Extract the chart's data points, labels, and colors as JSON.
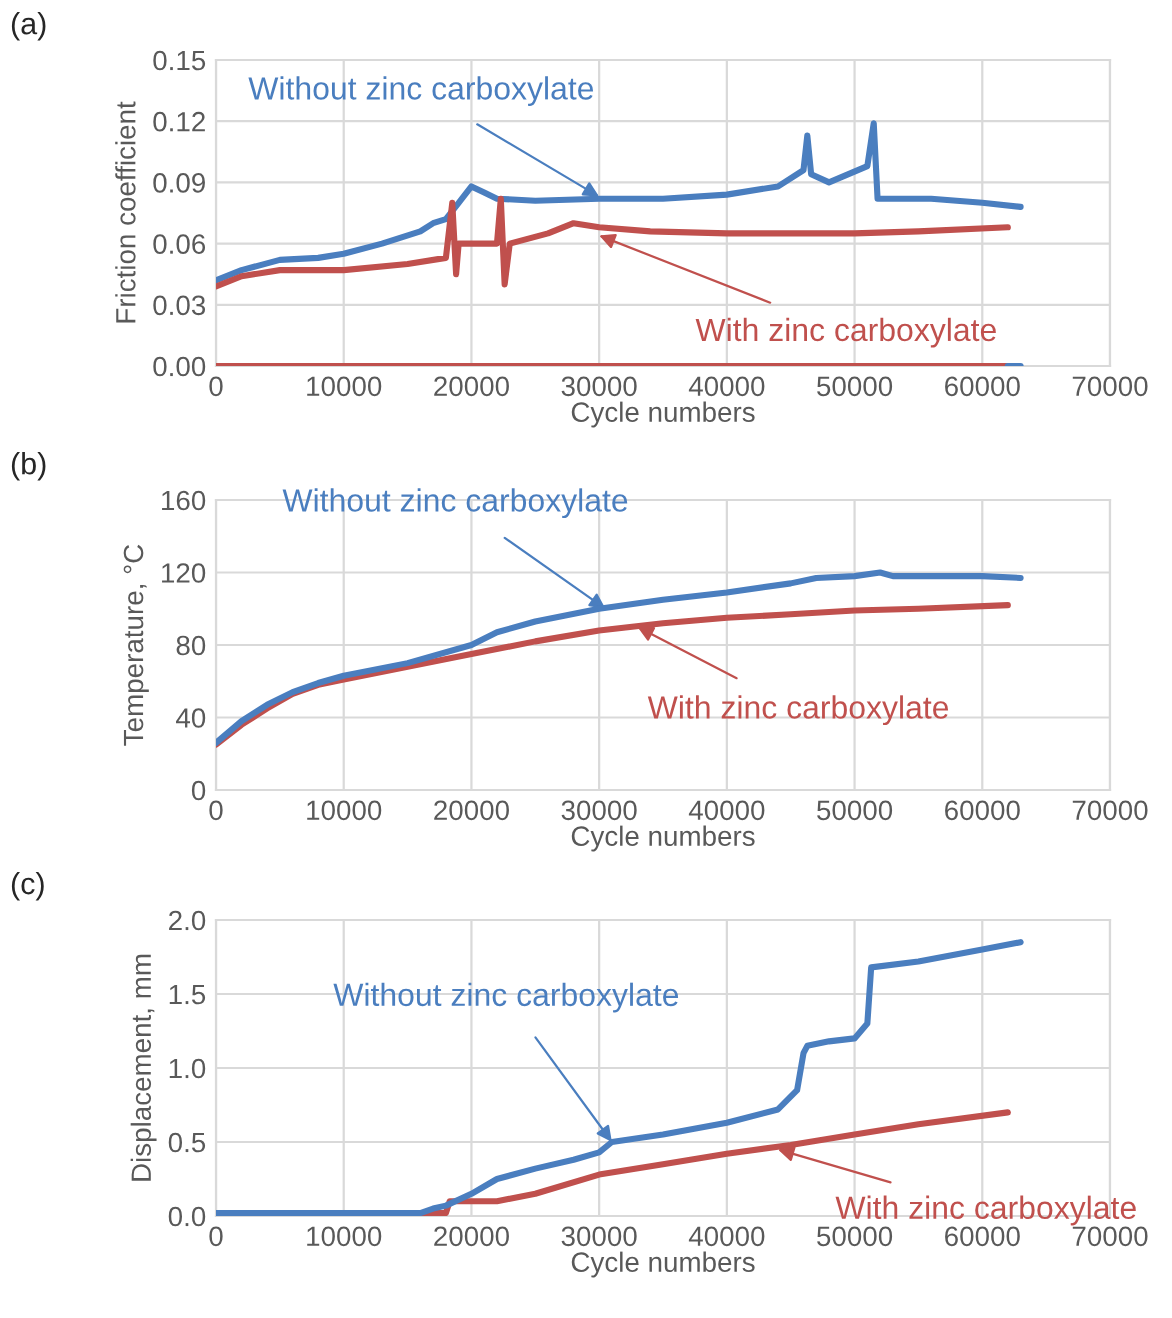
{
  "chart_data": [
    {
      "type": "line",
      "xlabel": "Cycle numbers",
      "ylabel": "Friction coefficient",
      "xlim": [
        0,
        70000
      ],
      "xticks": [
        0,
        10000,
        20000,
        30000,
        40000,
        50000,
        60000,
        70000
      ],
      "ylim": [
        0,
        0.15
      ],
      "yticks": [
        {
          "value": 0,
          "label": "0.00"
        },
        {
          "value": 0.03,
          "label": "0.03"
        },
        {
          "value": 0.06,
          "label": "0.06"
        },
        {
          "value": 0.09,
          "label": "0.09"
        },
        {
          "value": 0.12,
          "label": "0.12"
        },
        {
          "value": 0.15,
          "label": "0.15"
        }
      ],
      "grid": true,
      "legend": false,
      "marker": "none",
      "line_style": "solid",
      "annotations": [
        "(a)",
        {
          "text": "Without zinc carboxylate",
          "x": 30000,
          "y": 0.083
        },
        {
          "text": "With zinc carboxylate",
          "x": 30000,
          "y": 0.064
        }
      ],
      "series": [
        {
          "color": "#c0504d",
          "x": [
            0,
            62000
          ],
          "values": [
            0,
            0
          ]
        },
        {
          "color": "#4a7ebf",
          "x": [
            62000,
            63000
          ],
          "values": [
            0,
            0
          ]
        },
        {
          "color": "#4a7ebf",
          "x": [
            0,
            2000,
            5000,
            8000,
            10000,
            13000,
            16000,
            17000,
            18000,
            19000,
            20000,
            21000,
            22000,
            25000,
            30000,
            35000,
            40000,
            44000,
            46000,
            46300,
            46600,
            48000,
            51000,
            51500,
            51800,
            53000,
            56000,
            60000,
            63000
          ],
          "values": [
            0.042,
            0.047,
            0.052,
            0.053,
            0.055,
            0.06,
            0.066,
            0.07,
            0.072,
            0.08,
            0.088,
            0.085,
            0.082,
            0.081,
            0.082,
            0.082,
            0.084,
            0.088,
            0.096,
            0.113,
            0.094,
            0.09,
            0.098,
            0.119,
            0.082,
            0.082,
            0.082,
            0.08,
            0.078
          ]
        },
        {
          "color": "#c0504d",
          "x": [
            0,
            2000,
            5000,
            10000,
            15000,
            18000,
            18500,
            18800,
            19000,
            22000,
            22300,
            22600,
            23000,
            26000,
            28000,
            30000,
            34000,
            40000,
            50000,
            55000,
            62000
          ],
          "values": [
            0.039,
            0.044,
            0.047,
            0.047,
            0.05,
            0.053,
            0.08,
            0.045,
            0.06,
            0.06,
            0.082,
            0.04,
            0.06,
            0.065,
            0.07,
            0.068,
            0.066,
            0.065,
            0.065,
            0.066,
            0.068
          ]
        }
      ]
    },
    {
      "type": "line",
      "xlabel": "Cycle numbers",
      "ylabel": "Temperature, °C",
      "xlim": [
        0,
        70000
      ],
      "xticks": [
        0,
        10000,
        20000,
        30000,
        40000,
        50000,
        60000,
        70000
      ],
      "ylim": [
        0,
        160
      ],
      "yticks": [
        0,
        40,
        80,
        120,
        160
      ],
      "grid": true,
      "legend": false,
      "marker": "none",
      "line_style": "solid",
      "annotations": [
        "(b)",
        {
          "text": "Without zinc carboxylate",
          "x": 30500,
          "y": 100
        },
        {
          "text": "With zinc carboxylate",
          "x": 33000,
          "y": 90
        }
      ],
      "series": [
        {
          "color": "#c0504d",
          "x": [
            0,
            2000,
            4000,
            6000,
            8000,
            10000,
            15000,
            20000,
            25000,
            30000,
            35000,
            40000,
            45000,
            50000,
            55000,
            62000
          ],
          "values": [
            25,
            36,
            45,
            53,
            58,
            61,
            68,
            75,
            82,
            88,
            92,
            95,
            97,
            99,
            100,
            102
          ]
        },
        {
          "color": "#4a7ebf",
          "x": [
            0,
            2000,
            4000,
            6000,
            8000,
            10000,
            15000,
            20000,
            22000,
            25000,
            30000,
            35000,
            40000,
            45000,
            47000,
            50000,
            52000,
            53000,
            60000,
            63000
          ],
          "values": [
            26,
            38,
            47,
            54,
            59,
            63,
            70,
            80,
            87,
            93,
            100,
            105,
            109,
            114,
            117,
            118,
            120,
            118,
            118,
            117
          ]
        }
      ]
    },
    {
      "type": "line",
      "xlabel": "Cycle numbers",
      "ylabel": "Displacement, mm",
      "xlim": [
        0,
        70000
      ],
      "xticks": [
        0,
        10000,
        20000,
        30000,
        40000,
        50000,
        60000,
        70000
      ],
      "ylim": [
        0,
        2.0
      ],
      "yticks": [
        {
          "value": 0,
          "label": "0.0"
        },
        {
          "value": 0.5,
          "label": "0.5"
        },
        {
          "value": 1.0,
          "label": "1.0"
        },
        {
          "value": 1.5,
          "label": "1.5"
        },
        {
          "value": 2.0,
          "label": "2.0"
        }
      ],
      "grid": true,
      "legend": false,
      "marker": "none",
      "line_style": "solid",
      "annotations": [
        "(c)",
        {
          "text": "Without zinc carboxylate",
          "x": 31000,
          "y": 0.5
        },
        {
          "text": "With zinc carboxylate",
          "x": 44000,
          "y": 0.45
        }
      ],
      "series": [
        {
          "color": "#c0504d",
          "x": [
            0,
            18000,
            18300,
            22000,
            25000,
            30000,
            35000,
            40000,
            45000,
            50000,
            55000,
            62000
          ],
          "values": [
            0.02,
            0.02,
            0.1,
            0.1,
            0.15,
            0.28,
            0.35,
            0.42,
            0.48,
            0.55,
            0.62,
            0.7
          ]
        },
        {
          "color": "#4a7ebf",
          "x": [
            0,
            16000,
            17000,
            18000,
            20000,
            22000,
            25000,
            28000,
            30000,
            31000,
            35000,
            40000,
            44000,
            45500,
            46000,
            46300,
            48000,
            50000,
            51000,
            51300,
            55000,
            60000,
            63000
          ],
          "values": [
            0.02,
            0.02,
            0.05,
            0.07,
            0.15,
            0.25,
            0.32,
            0.38,
            0.43,
            0.5,
            0.55,
            0.63,
            0.72,
            0.85,
            1.1,
            1.15,
            1.18,
            1.2,
            1.3,
            1.68,
            1.72,
            1.8,
            1.85
          ]
        }
      ]
    }
  ]
}
